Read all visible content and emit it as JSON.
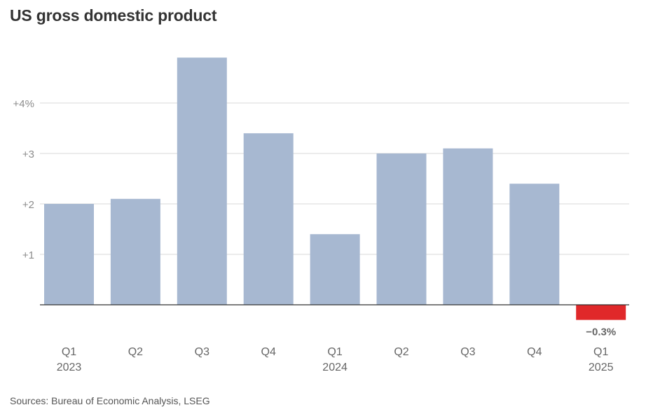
{
  "chart_data": {
    "type": "bar",
    "title": "US gross domestic product",
    "source": "Sources: Bureau of Economic Analysis, LSEG",
    "categories": [
      "Q1",
      "Q2",
      "Q3",
      "Q4",
      "Q1",
      "Q2",
      "Q3",
      "Q4",
      "Q1"
    ],
    "years": [
      "2023",
      "",
      "",
      "",
      "2024",
      "",
      "",
      "",
      "2025"
    ],
    "values": [
      2.0,
      2.1,
      4.9,
      3.4,
      1.4,
      3.0,
      3.1,
      2.4,
      -0.3
    ],
    "ylim": [
      -0.6,
      5.2
    ],
    "yticks": [
      1,
      2,
      3,
      4
    ],
    "ytick_labels": [
      "+1",
      "+2",
      "+3",
      "+4%"
    ],
    "data_labels": [
      "",
      "",
      "",
      "",
      "",
      "",
      "",
      "",
      "−0.3%"
    ],
    "colors": {
      "positive": "#a7b8d1",
      "negative": "#e0282a",
      "grid": "#d9d9d9",
      "axis": "#333333"
    },
    "grid": true
  }
}
